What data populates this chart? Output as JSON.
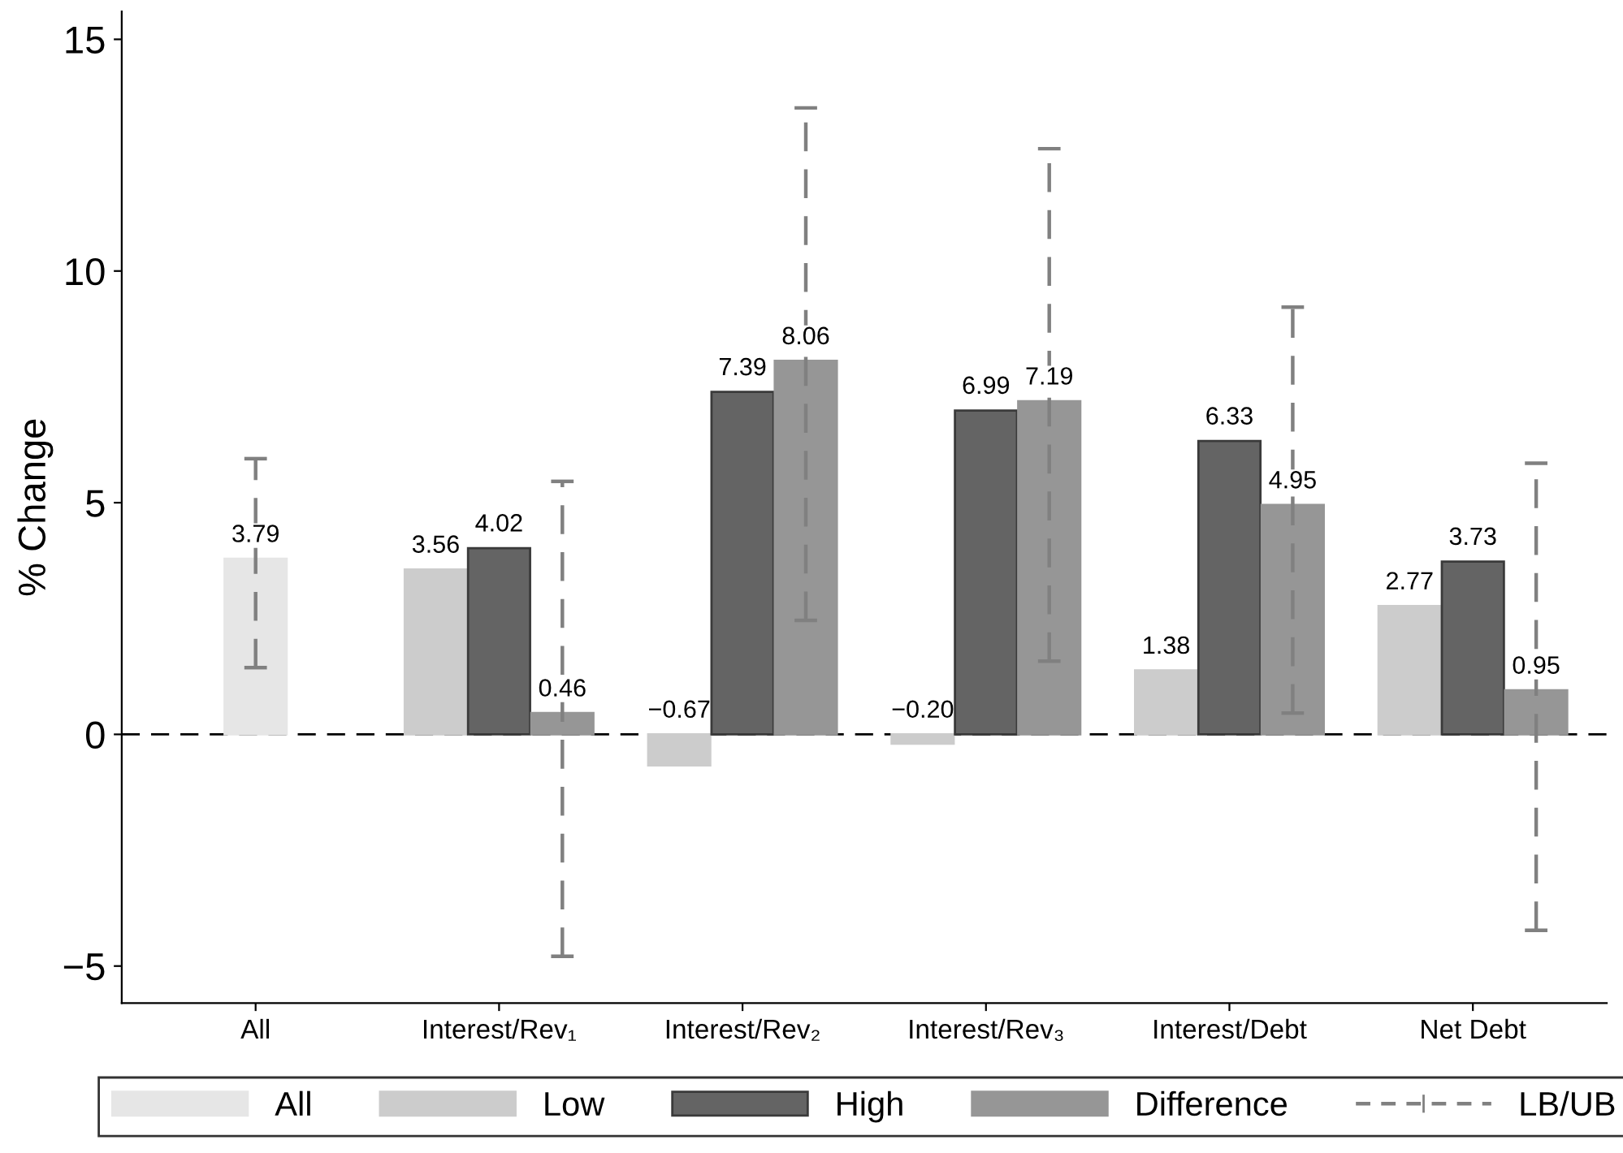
{
  "chart_data": {
    "type": "bar",
    "ylabel": "% Change",
    "categories": [
      "All",
      "Interest/Rev₁",
      "Interest/Rev₂",
      "Interest/Rev₃",
      "Interest/Debt",
      "Net Debt"
    ],
    "series": [
      {
        "name": "All",
        "color": "#e6e6e6",
        "values": [
          3.79,
          null,
          null,
          null,
          null,
          null
        ],
        "value_labels": [
          "3.79",
          null,
          null,
          null,
          null,
          null
        ],
        "errors": [
          [
            1.44,
            5.95
          ],
          null,
          null,
          null,
          null,
          null
        ]
      },
      {
        "name": "Low",
        "color": "#cccccc",
        "values": [
          null,
          3.56,
          -0.67,
          -0.2,
          1.38,
          2.77
        ],
        "value_labels": [
          null,
          "3.56",
          "−0.67",
          "−0.20",
          "1.38",
          "2.77"
        ]
      },
      {
        "name": "High",
        "color": "#646464",
        "values": [
          null,
          4.02,
          7.39,
          6.99,
          6.33,
          3.73
        ],
        "value_labels": [
          null,
          "4.02",
          "7.39",
          "6.99",
          "6.33",
          "3.73"
        ]
      },
      {
        "name": "Difference",
        "color": "#969696",
        "values": [
          null,
          0.46,
          8.06,
          7.19,
          4.95,
          0.95
        ],
        "value_labels": [
          null,
          "0.46",
          "8.06",
          "7.19",
          "4.95",
          "0.95"
        ],
        "errors": [
          null,
          [
            -4.79,
            5.46
          ],
          [
            2.46,
            13.52
          ],
          [
            1.58,
            12.64
          ],
          [
            0.46,
            9.22
          ],
          [
            -4.23,
            5.85
          ]
        ]
      }
    ],
    "annotations": [
      "LB/UB"
    ],
    "ylim": [
      -5.8,
      15.6
    ],
    "yticks": [
      {
        "value": -5,
        "label": "−5"
      },
      0,
      5,
      10,
      15
    ],
    "ref_lines": [
      {
        "axis": "y",
        "value": 0,
        "color": "#000000",
        "line_style": "dashed"
      }
    ],
    "grid": false,
    "legend": "bottom"
  }
}
